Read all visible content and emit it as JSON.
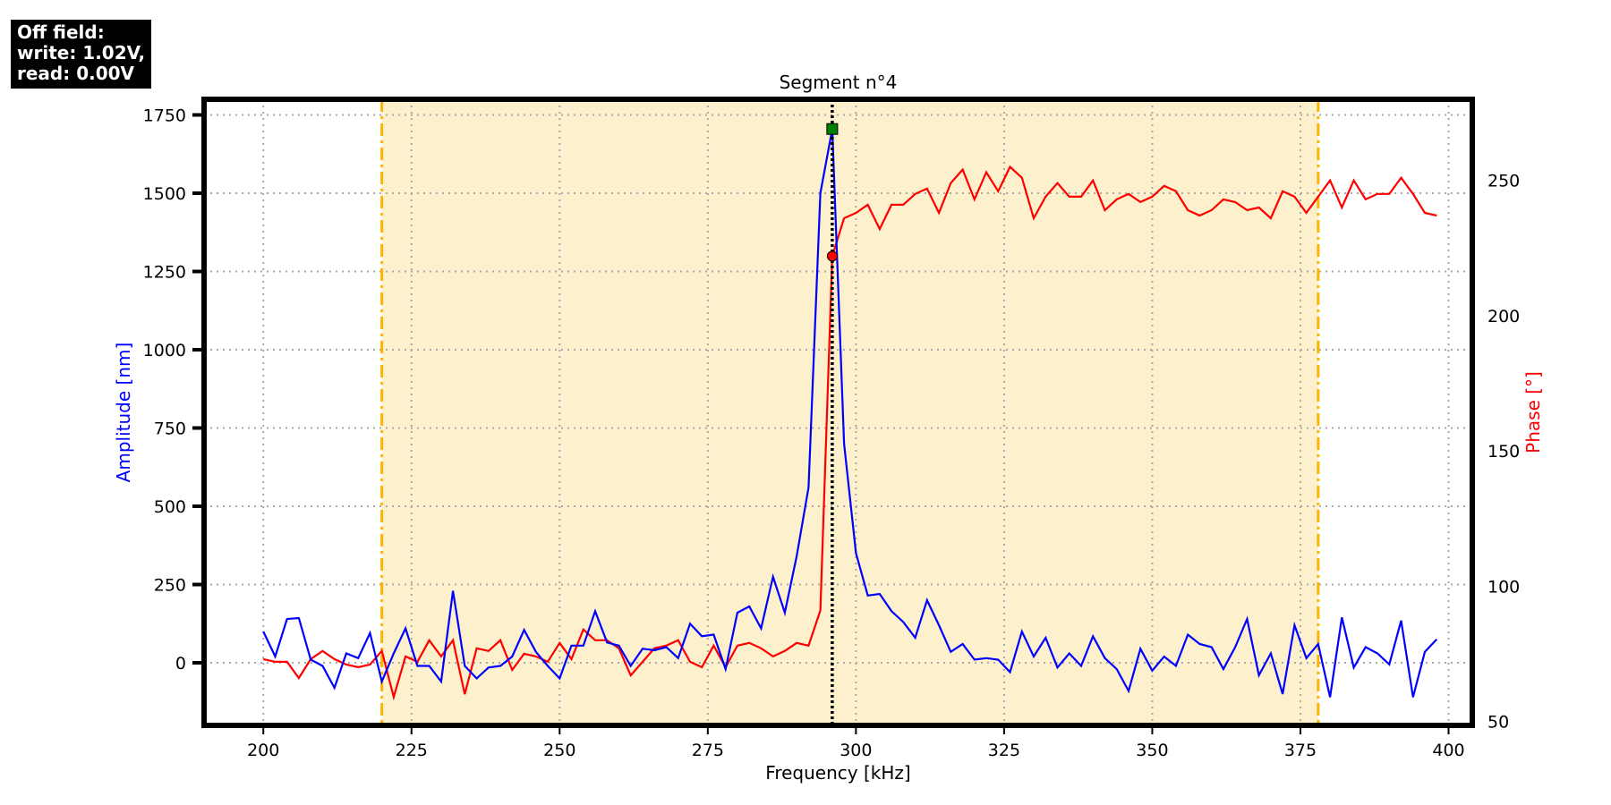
{
  "info_box": {
    "line1": "Off field:",
    "line2": "write: 1.02V,",
    "line3": "read: 0.00V"
  },
  "colors": {
    "amplitude": "#0000ff",
    "phase": "#ff0000",
    "band_fill": "#fdf0cc",
    "band_edge": "#ffb300",
    "peak_marker": "#008000",
    "phase_marker": "#ff0000"
  },
  "chart_data": {
    "type": "line",
    "title": "Segment n°4",
    "xlabel": "Frequency [kHz]",
    "ylabel": "Amplitude [nm]",
    "y2label": "Phase [°]",
    "xlim": [
      190,
      404
    ],
    "ylim": [
      -200,
      1800
    ],
    "y2lim": [
      48.5,
      280
    ],
    "grid": true,
    "x_ticks": [
      200,
      225,
      250,
      275,
      300,
      325,
      350,
      375,
      400
    ],
    "y_ticks": [
      0,
      250,
      500,
      750,
      1000,
      1250,
      1500,
      1750
    ],
    "y2_ticks": [
      50,
      100,
      150,
      200,
      250
    ],
    "band": [
      220,
      378
    ],
    "vline": 296,
    "peak": {
      "x": 296,
      "amplitude": 1705,
      "phase": 222
    },
    "x": [
      200,
      202,
      204,
      206,
      208,
      210,
      212,
      214,
      216,
      218,
      220,
      222,
      224,
      226,
      228,
      230,
      232,
      234,
      236,
      238,
      240,
      242,
      244,
      246,
      248,
      250,
      252,
      254,
      256,
      258,
      260,
      262,
      264,
      266,
      268,
      270,
      272,
      274,
      276,
      278,
      280,
      282,
      284,
      286,
      288,
      290,
      292,
      294,
      296,
      298,
      300,
      302,
      304,
      306,
      308,
      310,
      312,
      314,
      316,
      318,
      320,
      322,
      324,
      326,
      328,
      330,
      332,
      334,
      336,
      338,
      340,
      342,
      344,
      346,
      348,
      350,
      352,
      354,
      356,
      358,
      360,
      362,
      364,
      366,
      368,
      370,
      372,
      374,
      376,
      378,
      380,
      382,
      384,
      386,
      388,
      390,
      392,
      394,
      396,
      398
    ],
    "series": [
      {
        "name": "Amplitude [nm]",
        "axis": "left",
        "values": [
          100,
          20,
          140,
          143,
          10,
          -10,
          -80,
          30,
          15,
          95,
          -60,
          30,
          110,
          -10,
          -10,
          -60,
          230,
          -10,
          -50,
          -15,
          -10,
          20,
          105,
          35,
          -10,
          -50,
          55,
          55,
          165,
          65,
          55,
          -10,
          45,
          40,
          50,
          15,
          125,
          85,
          90,
          -20,
          160,
          180,
          110,
          275,
          160,
          340,
          560,
          1500,
          1705,
          700,
          350,
          215,
          220,
          165,
          130,
          80,
          200,
          120,
          35,
          60,
          10,
          15,
          10,
          -30,
          100,
          20,
          80,
          -15,
          30,
          -10,
          85,
          15,
          -20,
          -90,
          45,
          -25,
          20,
          -10,
          90,
          60,
          50,
          -20,
          50,
          140,
          -40,
          30,
          -100,
          120,
          15,
          60,
          -110,
          145,
          -15,
          50,
          30,
          -5,
          135,
          -110,
          35,
          75
        ]
      },
      {
        "name": "Phase [°]",
        "axis": "right",
        "values": [
          73,
          72,
          72,
          66,
          73,
          76,
          73,
          71,
          70,
          71,
          76,
          59,
          74,
          72,
          80,
          74,
          80,
          60,
          77,
          76,
          80,
          69,
          75,
          74,
          72,
          79,
          73,
          84,
          80,
          80,
          77,
          67,
          72,
          77,
          78,
          80,
          72,
          70,
          78,
          70,
          78,
          79,
          77,
          74,
          76,
          79,
          78,
          91,
          222,
          236,
          238,
          241,
          232,
          241,
          241,
          245,
          247,
          238,
          249,
          254,
          243,
          253,
          246,
          255,
          251,
          236,
          244,
          249,
          244,
          244,
          250,
          239,
          243,
          245,
          242,
          244,
          248,
          246,
          239,
          237,
          239,
          243,
          242,
          239,
          240,
          236,
          246,
          244,
          238,
          244,
          250,
          240,
          250,
          243,
          245,
          245,
          251,
          245,
          238,
          237
        ]
      }
    ]
  }
}
